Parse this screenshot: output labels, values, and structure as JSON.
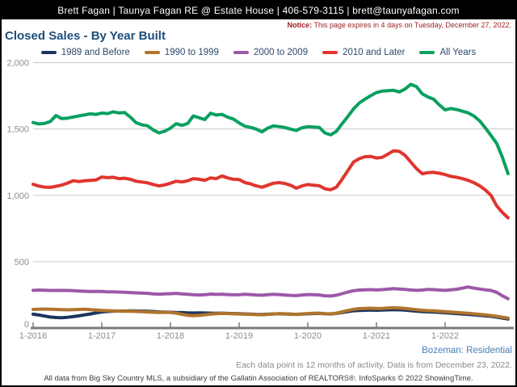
{
  "header": {
    "title": "Brett Fagan | Taunya Fagan RE @ Estate House | 406-579-3115 | brett@taunyafagan.com"
  },
  "notice": {
    "label": "Notice:",
    "text": "This page expires in 4 days on Tuesday, December 27, 2022."
  },
  "page_title": "Closed Sales - By Year Built",
  "region_label": "Bozeman: Residential",
  "data_note": "Each data point is 12 months of activity. Data is from December 23, 2022.",
  "attribution": "All data from Big Sky Country MLS, a subsidiary of the Gallatin Association of REALTORS®. InfoSparks © 2022 ShowingTime.",
  "colors": {
    "header_bg": "#000000",
    "title_text": "#1d4e79",
    "legend_text": "#2c4a6b",
    "notice_text": "#9b1d1d",
    "region_text": "#477eb8",
    "axis_label": "#8c8c8c",
    "gridline": "#cacaca",
    "axis_line": "#7a7a7a"
  },
  "chart_data": {
    "type": "line",
    "title": "Closed Sales - By Year Built",
    "x_start": "1-2016",
    "x_end": "12-2022",
    "x_interval": "monthly",
    "x_tick_labels": [
      "1-2016",
      "1-2017",
      "1-2018",
      "1-2019",
      "1-2020",
      "1-2021",
      "1-2022"
    ],
    "y_ticks": [
      0,
      500,
      1000,
      1500,
      2000
    ],
    "y_tick_labels": [
      "0",
      "500",
      "1,000",
      "1,500",
      "2,000"
    ],
    "ylim": [
      0,
      2000
    ],
    "grid": "horizontal",
    "legend_position": "top",
    "series": [
      {
        "name": "1989 and Before",
        "color": "#1c355e",
        "values": [
          104,
          98,
          90,
          83,
          79,
          78,
          81,
          86,
          92,
          99,
          106,
          114,
          121,
          125,
          127,
          128,
          128,
          129,
          128,
          127,
          126,
          124,
          121,
          120,
          119,
          117,
          116,
          114,
          113,
          114,
          113,
          112,
          111,
          112,
          110,
          109,
          108,
          106,
          105,
          103,
          102,
          104,
          106,
          107,
          106,
          104,
          103,
          105,
          107,
          109,
          110,
          107,
          106,
          110,
          117,
          124,
          130,
          133,
          134,
          135,
          134,
          135,
          137,
          139,
          137,
          135,
          131,
          127,
          124,
          122,
          120,
          118,
          115,
          112,
          109,
          106,
          103,
          100,
          96,
          92,
          88,
          82,
          75,
          68
        ]
      },
      {
        "name": "1990 to 1999",
        "color": "#b0742c",
        "values": [
          140,
          142,
          143,
          142,
          140,
          138,
          137,
          138,
          140,
          141,
          139,
          136,
          133,
          131,
          129,
          127,
          126,
          127,
          125,
          123,
          121,
          119,
          117,
          119,
          117,
          112,
          103,
          96,
          93,
          95,
          100,
          105,
          108,
          110,
          109,
          107,
          106,
          104,
          103,
          101,
          100,
          103,
          106,
          108,
          107,
          105,
          103,
          106,
          109,
          111,
          112,
          108,
          107,
          112,
          122,
          132,
          141,
          146,
          148,
          149,
          147,
          148,
          151,
          153,
          151,
          148,
          143,
          138,
          134,
          131,
          129,
          126,
          123,
          120,
          117,
          114,
          111,
          107,
          103,
          99,
          94,
          88,
          81,
          75
        ]
      },
      {
        "name": "2000 to 2009",
        "color": "#9c59a8",
        "values": [
          284,
          286,
          285,
          283,
          283,
          284,
          283,
          281,
          279,
          277,
          276,
          275,
          275,
          273,
          272,
          271,
          269,
          267,
          265,
          263,
          261,
          257,
          255,
          257,
          259,
          261,
          257,
          254,
          251,
          249,
          251,
          256,
          253,
          255,
          252,
          250,
          251,
          254,
          252,
          249,
          247,
          251,
          254,
          252,
          249,
          246,
          244,
          249,
          252,
          251,
          249,
          243,
          241,
          247,
          259,
          271,
          281,
          286,
          288,
          289,
          287,
          289,
          293,
          297,
          294,
          291,
          287,
          284,
          286,
          291,
          289,
          286,
          284,
          288,
          292,
          300,
          309,
          301,
          294,
          288,
          283,
          269,
          243,
          221
        ]
      },
      {
        "name": "2010 and Later",
        "color": "#e0352e",
        "values": [
          1083,
          1070,
          1062,
          1060,
          1068,
          1077,
          1092,
          1110,
          1104,
          1109,
          1113,
          1116,
          1138,
          1133,
          1136,
          1126,
          1129,
          1121,
          1106,
          1100,
          1094,
          1081,
          1071,
          1079,
          1091,
          1106,
          1101,
          1109,
          1126,
          1121,
          1113,
          1131,
          1126,
          1146,
          1131,
          1121,
          1119,
          1096,
          1086,
          1071,
          1061,
          1076,
          1091,
          1096,
          1089,
          1076,
          1053,
          1071,
          1081,
          1076,
          1072,
          1049,
          1042,
          1061,
          1121,
          1186,
          1251,
          1276,
          1291,
          1293,
          1281,
          1286,
          1311,
          1336,
          1331,
          1301,
          1251,
          1201,
          1163,
          1171,
          1173,
          1166,
          1156,
          1143,
          1136,
          1126,
          1113,
          1096,
          1073,
          1041,
          1001,
          921,
          871,
          831
        ]
      },
      {
        "name": "All Years",
        "color": "#0aa05f",
        "values": [
          1548,
          1538,
          1542,
          1556,
          1601,
          1578,
          1582,
          1590,
          1598,
          1606,
          1614,
          1610,
          1620,
          1616,
          1629,
          1621,
          1624,
          1589,
          1547,
          1531,
          1524,
          1492,
          1471,
          1483,
          1506,
          1540,
          1527,
          1541,
          1598,
          1585,
          1571,
          1618,
          1605,
          1610,
          1589,
          1575,
          1546,
          1521,
          1512,
          1499,
          1478,
          1506,
          1523,
          1518,
          1511,
          1499,
          1489,
          1509,
          1517,
          1514,
          1512,
          1470,
          1456,
          1482,
          1540,
          1594,
          1651,
          1696,
          1725,
          1751,
          1774,
          1785,
          1789,
          1791,
          1779,
          1801,
          1836,
          1819,
          1765,
          1741,
          1724,
          1681,
          1644,
          1654,
          1646,
          1634,
          1622,
          1599,
          1563,
          1509,
          1452,
          1392,
          1289,
          1163
        ]
      }
    ]
  }
}
